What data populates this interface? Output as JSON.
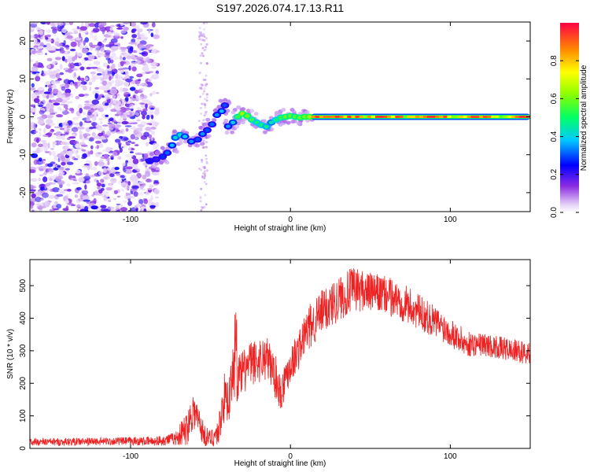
{
  "title": "S197.2026.074.17.13.R11",
  "colorbar": {
    "label": "Normalized spectral amplitude",
    "ticks": [
      "0.0",
      "0.2",
      "0.4",
      "0.6",
      "0.8"
    ],
    "range": [
      0,
      1
    ]
  },
  "chart_data": [
    {
      "type": "heatmap",
      "title": "S197.2026.074.17.13.R11",
      "xlabel": "Height of straight line (km)",
      "ylabel": "Frequency (Hz)",
      "xlim": [
        -163,
        150
      ],
      "ylim": [
        -25,
        25
      ],
      "xticks": [
        -100,
        0,
        100
      ],
      "yticks": [
        -20,
        -10,
        0,
        10,
        20
      ],
      "xtick_labels": [
        "-100",
        "0",
        "100"
      ],
      "ytick_labels": [
        "-20",
        "-10",
        "0",
        "10",
        "20"
      ],
      "trace": [
        {
          "x": -88,
          "y": -11.7,
          "a": 0.22
        },
        {
          "x": -84,
          "y": -11.2,
          "a": 0.2
        },
        {
          "x": -80,
          "y": -10.5,
          "a": 0.28
        },
        {
          "x": -77,
          "y": -9.5,
          "a": 0.32
        },
        {
          "x": -74,
          "y": -7.5,
          "a": 0.38
        },
        {
          "x": -72,
          "y": -5.5,
          "a": 0.42
        },
        {
          "x": -69,
          "y": -4.8,
          "a": 0.45
        },
        {
          "x": -66,
          "y": -5.2,
          "a": 0.4
        },
        {
          "x": -62,
          "y": -6.5,
          "a": 0.35
        },
        {
          "x": -58,
          "y": -6.0,
          "a": 0.3
        },
        {
          "x": -55,
          "y": -4.5,
          "a": 0.35
        },
        {
          "x": -52,
          "y": -3.5,
          "a": 0.3
        },
        {
          "x": -49,
          "y": -2.0,
          "a": 0.32
        },
        {
          "x": -46,
          "y": 0.5,
          "a": 0.35
        },
        {
          "x": -43,
          "y": 1.5,
          "a": 0.38
        },
        {
          "x": -41,
          "y": 3.0,
          "a": 0.3
        },
        {
          "x": -39,
          "y": -2.5,
          "a": 0.35
        },
        {
          "x": -36,
          "y": -1.5,
          "a": 0.4
        },
        {
          "x": -33,
          "y": 0.0,
          "a": 0.55
        },
        {
          "x": -30,
          "y": 0.8,
          "a": 0.65
        },
        {
          "x": -27,
          "y": 0.2,
          "a": 0.6
        },
        {
          "x": -24,
          "y": -0.8,
          "a": 0.55
        },
        {
          "x": -21,
          "y": -1.5,
          "a": 0.5
        },
        {
          "x": -18,
          "y": -2.2,
          "a": 0.5
        },
        {
          "x": -15,
          "y": -2.6,
          "a": 0.48
        },
        {
          "x": -12,
          "y": -1.5,
          "a": 0.45
        },
        {
          "x": -9,
          "y": -0.8,
          "a": 0.5
        },
        {
          "x": -6,
          "y": -0.2,
          "a": 0.55
        },
        {
          "x": -3,
          "y": 0.0,
          "a": 0.6
        },
        {
          "x": 0,
          "y": 0.2,
          "a": 0.6
        },
        {
          "x": 3,
          "y": 0.0,
          "a": 0.58
        },
        {
          "x": 6,
          "y": -0.2,
          "a": 0.6
        },
        {
          "x": 9,
          "y": 0.0,
          "a": 0.62
        },
        {
          "x": 12,
          "y": 0.0,
          "a": 0.65
        }
      ],
      "band": {
        "x_start": 13,
        "x_end": 150,
        "y": 0,
        "peak_amplitude": 0.95
      }
    },
    {
      "type": "line",
      "xlabel": "Height of straight line (km)",
      "ylabel": "SNR (10 * v/v)",
      "xlim": [
        -163,
        150
      ],
      "ylim": [
        0,
        580
      ],
      "xticks": [
        -100,
        0,
        100
      ],
      "yticks": [
        0,
        100,
        200,
        300,
        400,
        500
      ],
      "xtick_labels": [
        "-100",
        "0",
        "100"
      ],
      "ytick_labels": [
        "0",
        "100",
        "200",
        "300",
        "400",
        "500"
      ],
      "series": [
        {
          "name": "SNR",
          "color": "#ee2222",
          "x": [
            -163,
            -140,
            -110,
            -85,
            -72,
            -65,
            -61,
            -57,
            -54,
            -50,
            -45,
            -42,
            -38,
            -36,
            -34,
            -30,
            -25,
            -20,
            -15,
            -10,
            -6,
            -3,
            0,
            5,
            10,
            20,
            30,
            40,
            50,
            60,
            70,
            80,
            90,
            100,
            105,
            110,
            120,
            130,
            140,
            150
          ],
          "y": [
            20,
            20,
            22,
            22,
            30,
            60,
            120,
            80,
            40,
            30,
            50,
            150,
            160,
            240,
            210,
            230,
            260,
            270,
            280,
            230,
            170,
            220,
            260,
            300,
            360,
            420,
            460,
            490,
            480,
            470,
            450,
            420,
            390,
            360,
            340,
            320,
            320,
            310,
            300,
            290
          ],
          "noise": [
            12,
            12,
            12,
            14,
            20,
            55,
            60,
            50,
            35,
            25,
            45,
            80,
            80,
            70,
            70,
            70,
            70,
            70,
            70,
            70,
            60,
            60,
            60,
            60,
            70,
            70,
            70,
            70,
            60,
            60,
            60,
            55,
            50,
            45,
            45,
            40,
            35,
            35,
            35,
            35
          ]
        }
      ]
    }
  ]
}
